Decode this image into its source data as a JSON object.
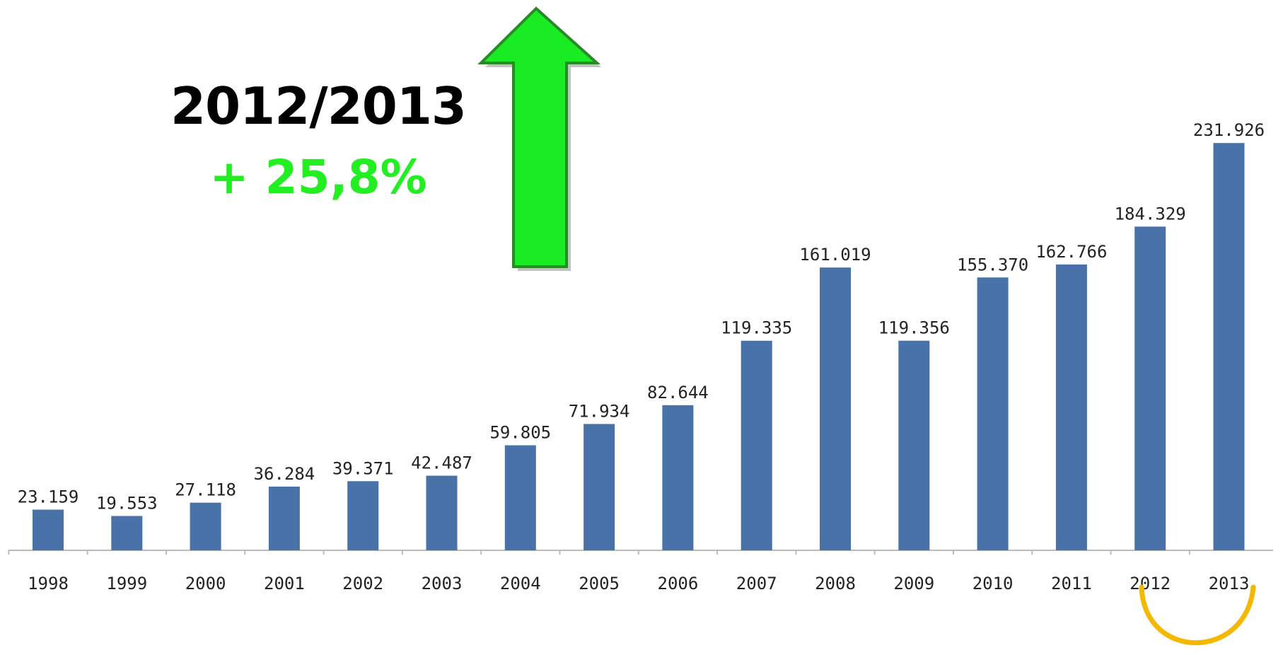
{
  "headline": "2012/2013",
  "growth": "+ 25,8%",
  "colors": {
    "bar": "#4872a8",
    "growth_text": "#22ee22",
    "arrow_fill": "#19ec23",
    "arrow_stroke": "#2a8a2a",
    "highlight": "#f5b800",
    "axis": "#bbbbbb",
    "label": "#222222"
  },
  "chart_data": {
    "type": "bar",
    "categories": [
      "1998",
      "1999",
      "2000",
      "2001",
      "2002",
      "2003",
      "2004",
      "2005",
      "2006",
      "2007",
      "2008",
      "2009",
      "2010",
      "2011",
      "2012",
      "2013"
    ],
    "values": [
      23159,
      19553,
      27118,
      36284,
      39371,
      42487,
      59805,
      71934,
      82644,
      119335,
      161019,
      119356,
      155370,
      162766,
      184329,
      231926
    ],
    "data_labels": [
      "23.159",
      "19.553",
      "27.118",
      "36.284",
      "39.371",
      "42.487",
      "59.805",
      "71.934",
      "82.644",
      "119.335",
      "161.019",
      "119.356",
      "155.370",
      "162.766",
      "184.329",
      "231.926"
    ],
    "ylim": [
      0,
      232000
    ],
    "grid": false,
    "highlighted_categories": [
      "2012",
      "2013"
    ],
    "annotation": {
      "direction": "up",
      "icon": "up-arrow-icon"
    }
  }
}
